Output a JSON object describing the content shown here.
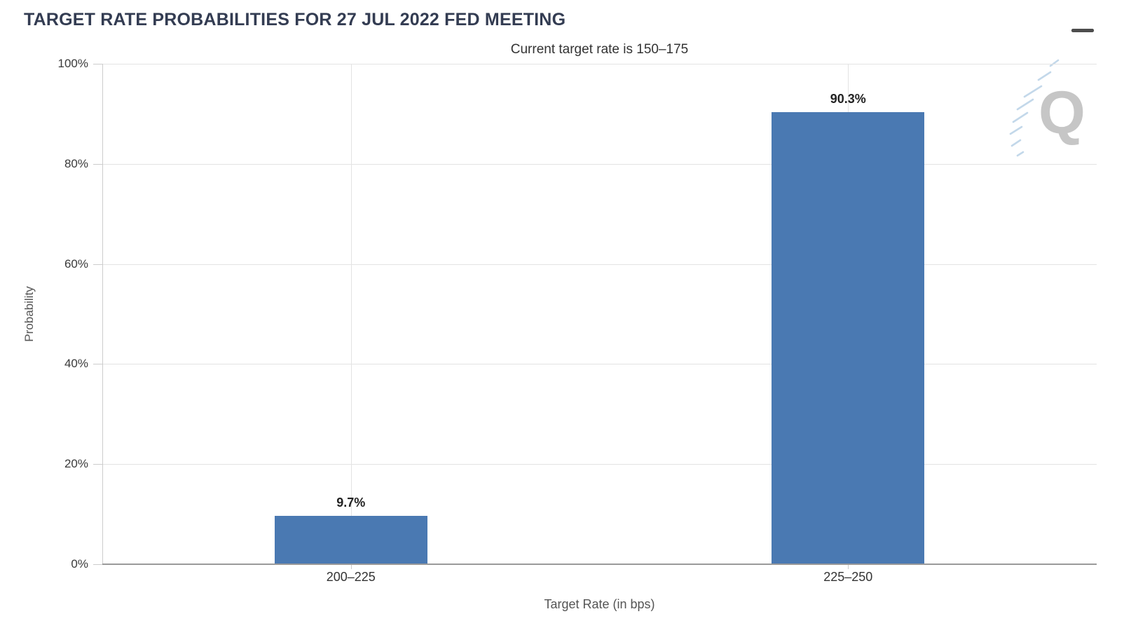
{
  "header": {
    "title": "TARGET RATE PROBABILITIES FOR 27 JUL 2022 FED MEETING"
  },
  "menu": {
    "icon": "hamburger-menu-icon",
    "tooltip": "Chart context menu"
  },
  "watermark": {
    "letter": "Q"
  },
  "chart_data": {
    "type": "bar",
    "title": "TARGET RATE PROBABILITIES FOR 27 JUL 2022 FED MEETING",
    "subtitle": "Current target rate is 150–175",
    "xlabel": "Target Rate (in bps)",
    "ylabel": "Probability",
    "categories": [
      "200–225",
      "225–250"
    ],
    "values": [
      9.7,
      90.3
    ],
    "data_labels": [
      "9.7%",
      "90.3%"
    ],
    "ylim": [
      0,
      100
    ],
    "ytick_step": 20,
    "ytick_labels": [
      "0%",
      "20%",
      "40%",
      "60%",
      "80%",
      "100%"
    ],
    "grid": true,
    "legend": "none",
    "bar_color": "#4a79b2"
  },
  "colors": {
    "title": "#333c52",
    "subtitle": "#333333",
    "bar": "#4a79b2",
    "gridline": "#e3e3e3",
    "x_axis_line": "#9a9a9a",
    "y_axis_line": "#cccccc",
    "tick_label": "#3a3a3a",
    "axis_title": "#555555",
    "watermark_gray": "#c6c6c6",
    "watermark_blue": "#c3d8ea",
    "menu_icon": "#4d4d4d"
  }
}
